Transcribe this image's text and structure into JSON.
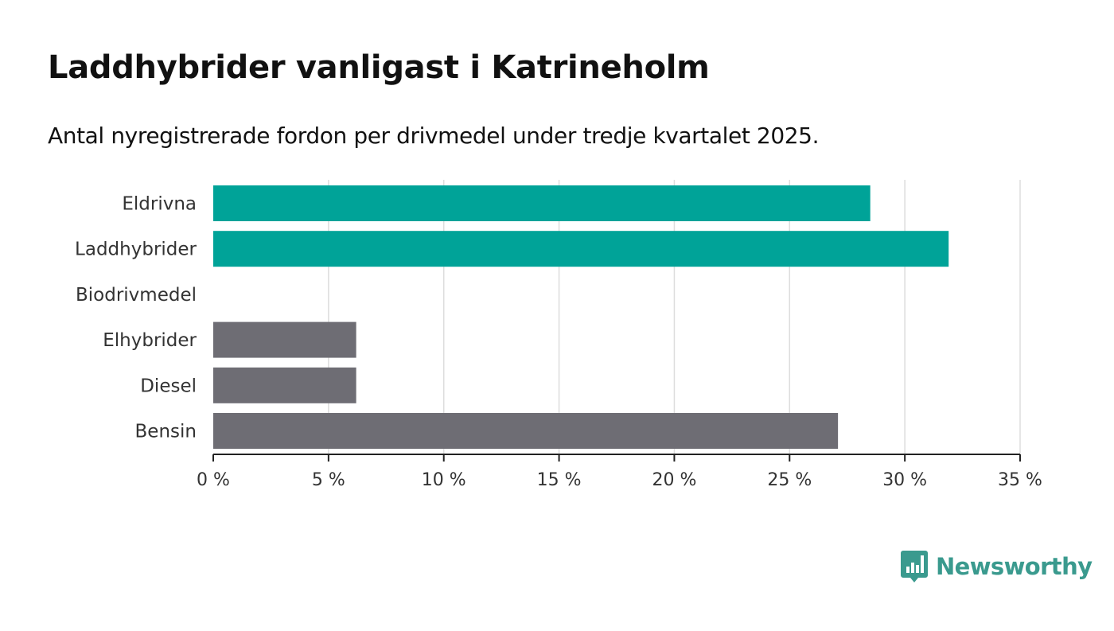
{
  "title": "Laddhybrider vanligast i Katrineholm",
  "subtitle": "Antal nyregistrerade fordon per drivmedel under tredje kvartalet 2025.",
  "brand": {
    "name": "Newsworthy",
    "color": "#3a9a8e",
    "icon": "bar-chart-speech-bubble-icon"
  },
  "colors": {
    "highlight": "#00a398",
    "default": "#6e6d74",
    "grid": "#dddddd",
    "axis": "#222222"
  },
  "chart_data": {
    "type": "bar",
    "orientation": "horizontal",
    "categories": [
      "Eldrivna",
      "Laddhybrider",
      "Biodrivmedel",
      "Elhybrider",
      "Diesel",
      "Bensin"
    ],
    "values": [
      28.5,
      31.9,
      0,
      6.2,
      6.2,
      27.1
    ],
    "highlight": [
      true,
      true,
      false,
      false,
      false,
      false
    ],
    "unit": "%",
    "xlim": [
      0,
      35
    ],
    "xticks": [
      0,
      5,
      10,
      15,
      20,
      25,
      30,
      35
    ],
    "xtick_labels": [
      "0 %",
      "5 %",
      "10 %",
      "15 %",
      "20 %",
      "25 %",
      "30 %",
      "35 %"
    ],
    "grid": true,
    "legend": "none"
  }
}
